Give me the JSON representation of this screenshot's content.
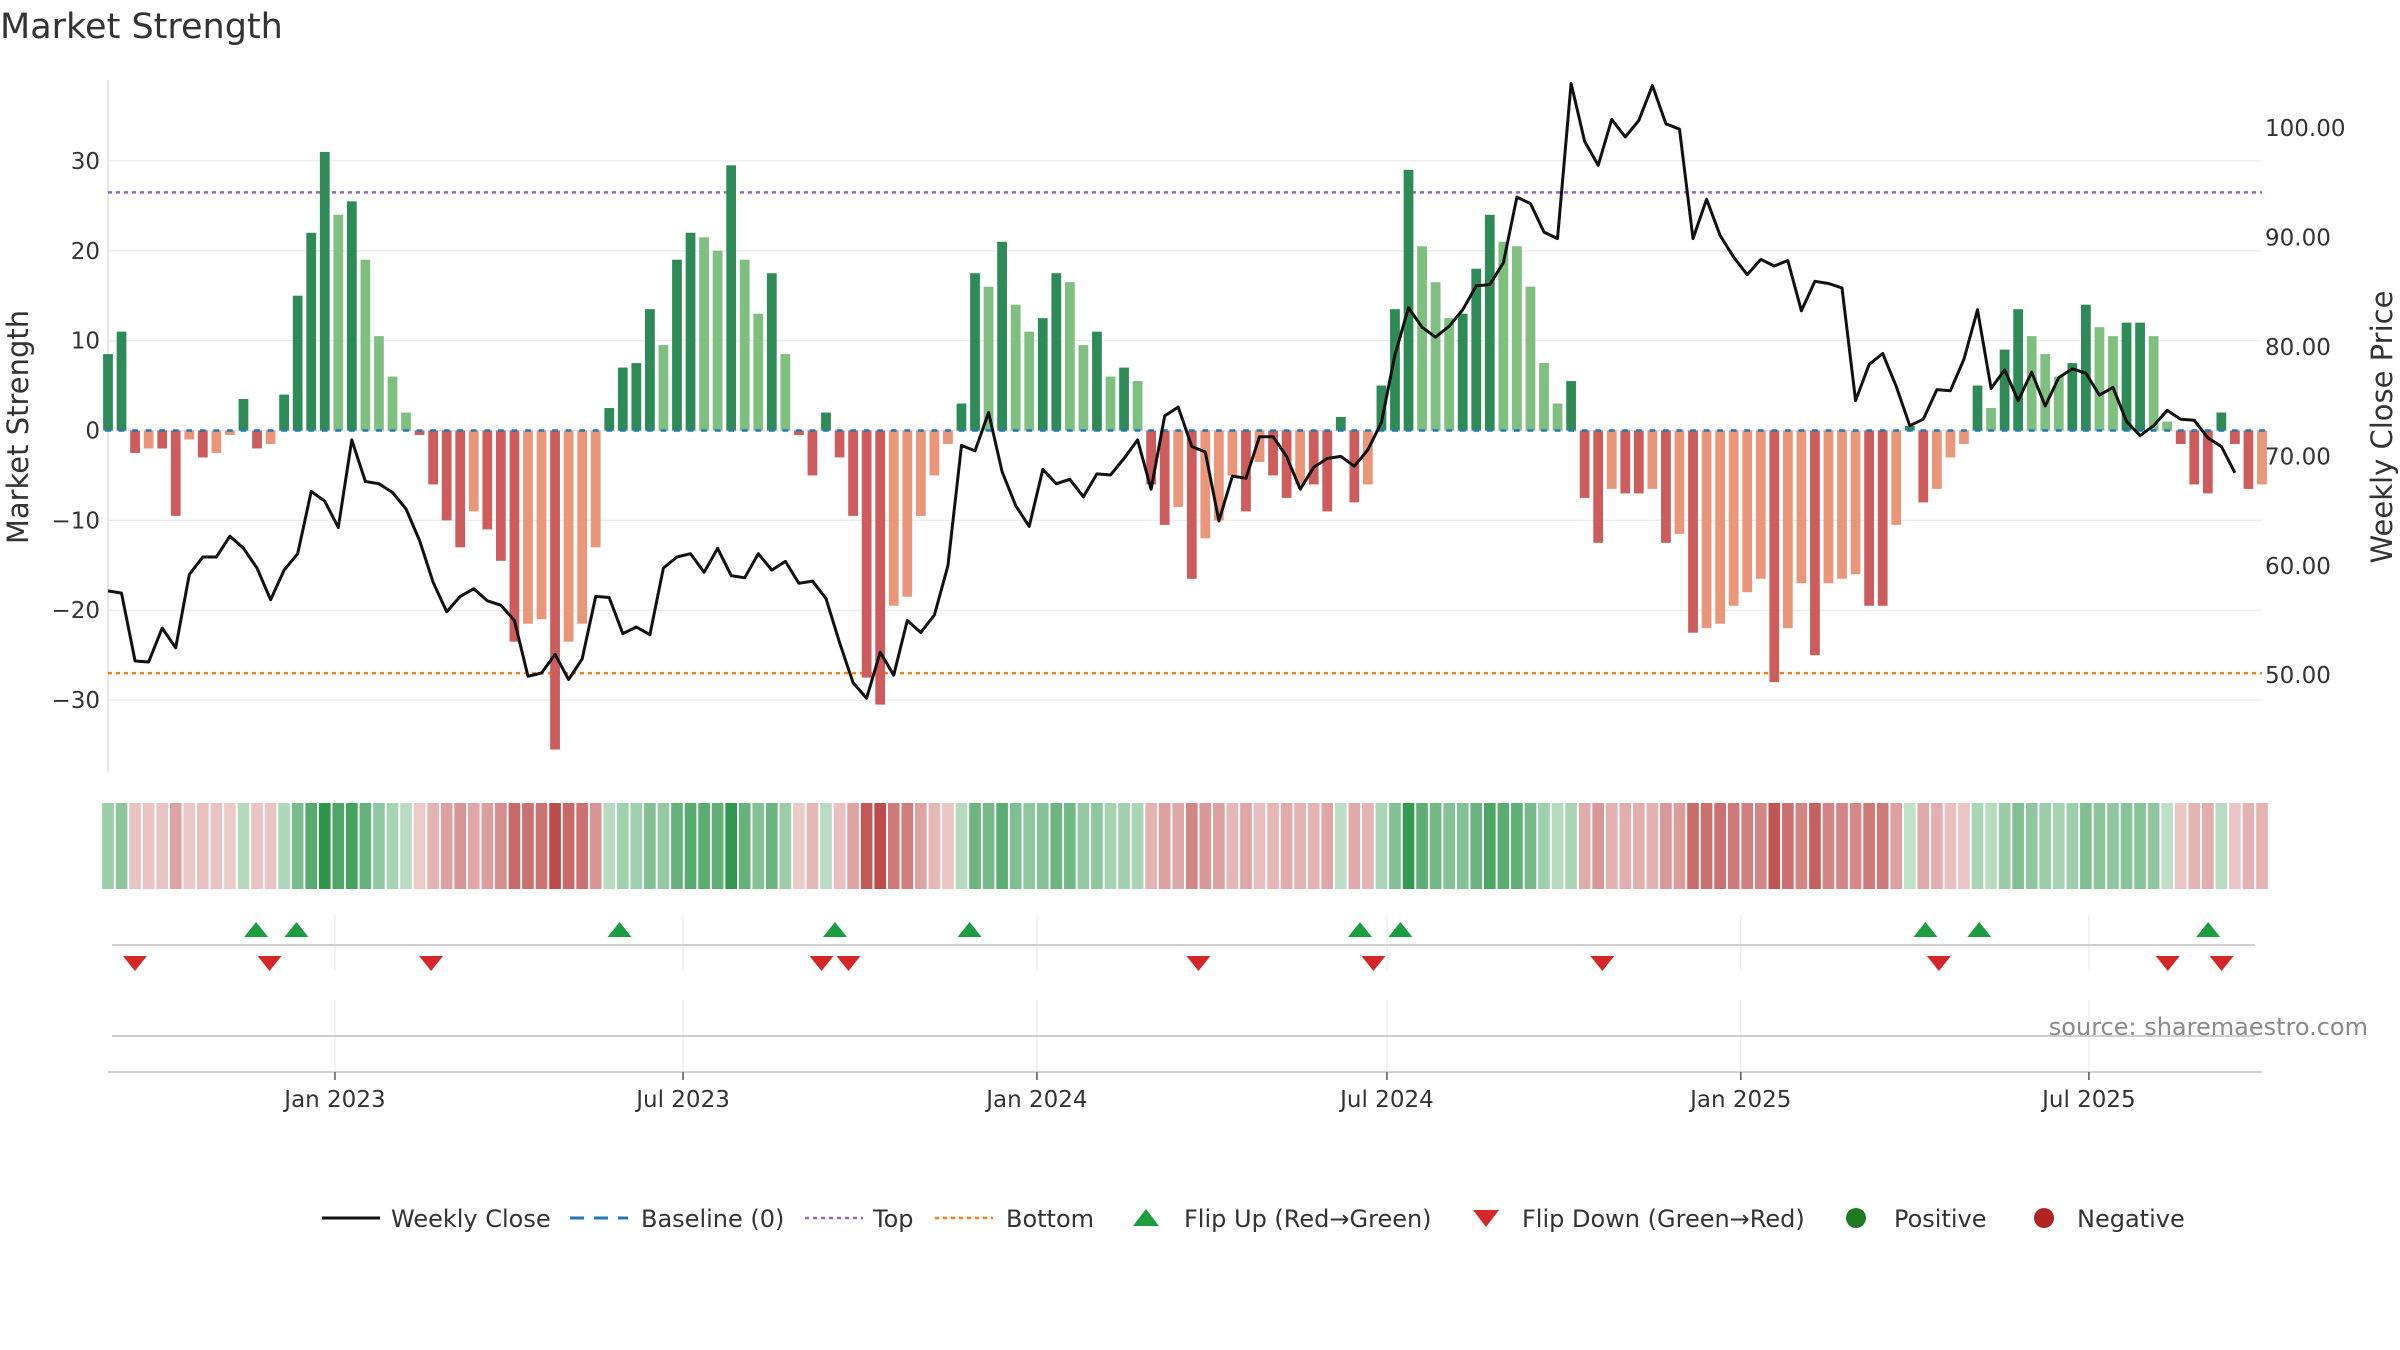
{
  "chart_data": {
    "type": "bar",
    "title": "Market Strength",
    "ylabel": "Market Strength",
    "y2label": "Weekly Close Price",
    "ylim": [
      -38,
      39
    ],
    "y2lim": [
      41.15,
      104.4
    ],
    "yticks": [
      30,
      20,
      10,
      0,
      -10,
      -20,
      -30
    ],
    "ytick_labels": [
      "30",
      "20",
      "10",
      "0",
      "−10",
      "−20",
      "−30"
    ],
    "y2ticks": [
      100,
      90,
      80,
      70,
      60,
      50
    ],
    "y2tick_labels": [
      "100.00",
      "90.00",
      "80.00",
      "70.00",
      "60.00",
      "50.00"
    ],
    "x_start": "2022-09-05",
    "x_end": "2025-09-29",
    "xtick_dates": [
      "2023-01-01",
      "2023-07-01",
      "2024-01-01",
      "2024-07-01",
      "2025-01-01",
      "2025-07-01"
    ],
    "xtick_labels": [
      "Jan 2023",
      "Jul 2023",
      "Jan 2024",
      "Jul 2024",
      "Jan 2025",
      "Jul 2025"
    ],
    "top_level": 26.5,
    "bottom_level": -27,
    "baseline": 0,
    "colors": {
      "green_dark": "#2e8b57",
      "green_light": "#7fbf7f",
      "red_dark": "#cd5c5c",
      "red_light": "#e9967a",
      "close": "#111111",
      "baseline": "#1f77b4",
      "top": "#9467bd",
      "bottom": "#ff7f0e",
      "flip_up": "#1a9e3f",
      "flip_down": "#d62728",
      "positive": "#1f7a1f",
      "negative": "#b22222"
    },
    "strength": [
      8.5,
      11,
      -2.5,
      -2,
      -2,
      -9.5,
      -1,
      -3,
      -2.5,
      -0.5,
      3.5,
      -2,
      -1.5,
      4,
      15,
      22,
      31,
      24,
      25.5,
      19,
      10.5,
      6,
      2,
      -0.5,
      -6,
      -10,
      -13,
      -9,
      -11,
      -14.5,
      -23.5,
      -21.5,
      -21,
      -35.5,
      -23.5,
      -21.5,
      -13,
      2.5,
      7,
      7.5,
      13.5,
      9.5,
      19,
      22,
      21.5,
      20,
      29.5,
      19,
      13,
      17.5,
      8.5,
      -0.5,
      -5,
      2,
      -3,
      -9.5,
      -27.5,
      -30.5,
      -19.5,
      -18.5,
      -9.5,
      -5,
      -1.5,
      3,
      17.5,
      16,
      21,
      14,
      11,
      12.5,
      17.5,
      16.5,
      9.5,
      11,
      6,
      7,
      5.5,
      -6,
      -10.5,
      -8.5,
      -16.5,
      -12,
      -10,
      -5,
      -9,
      -3.5,
      -5,
      -7.5,
      -6,
      -6,
      -9,
      1.5,
      -8,
      -6,
      5,
      13.5,
      29,
      20.5,
      16.5,
      12.5,
      13,
      18,
      24,
      21,
      20.5,
      16,
      7.5,
      3,
      5.5,
      -7.5,
      -12.5,
      -6.5,
      -7,
      -7,
      -6.5,
      -12.5,
      -11.5,
      -22.5,
      -22,
      -21.5,
      -19.5,
      -18,
      -16.5,
      -28,
      -22,
      -17,
      -25,
      -17,
      -16.5,
      -16,
      -19.5,
      -19.5,
      -10.5,
      0.5,
      -8,
      -6.5,
      -3,
      -1.5,
      5,
      2.5,
      9,
      13.5,
      10.5,
      8.5,
      6,
      7.5,
      14,
      11.5,
      10.5,
      12,
      12,
      10.5,
      1,
      -1.5,
      -6,
      -7,
      2,
      -1.5,
      -6.5,
      -6
    ],
    "close": [
      57.7,
      57.5,
      51.3,
      51.2,
      54.3,
      52.5,
      59.2,
      60.8,
      60.8,
      62.7,
      61.6,
      59.8,
      56.9,
      59.6,
      61.1,
      66.8,
      65.9,
      63.5,
      71.5,
      67.7,
      67.5,
      66.7,
      65.2,
      62.3,
      58.5,
      55.8,
      57.2,
      57.9,
      56.8,
      56.4,
      55.0,
      49.9,
      50.2,
      51.9,
      49.6,
      51.5,
      57.2,
      57.1,
      53.8,
      54.4,
      53.7,
      59.8,
      60.8,
      61.1,
      59.4,
      61.6,
      59.1,
      58.9,
      61.1,
      59.6,
      60.4,
      58.4,
      58.6,
      57.0,
      53.0,
      49.3,
      47.9,
      52.1,
      50.0,
      55.0,
      53.9,
      55.5,
      60.0,
      71.0,
      70.5,
      74.0,
      68.6,
      65.5,
      63.6,
      68.8,
      67.5,
      67.9,
      66.3,
      68.4,
      68.3,
      69.8,
      71.5,
      67.0,
      73.7,
      74.5,
      70.9,
      70.4,
      64.1,
      68.2,
      68.0,
      71.8,
      71.8,
      70.0,
      67.0,
      69.0,
      69.8,
      70.0,
      69.1,
      70.6,
      73.1,
      79.3,
      83.6,
      81.8,
      80.9,
      81.9,
      83.4,
      85.6,
      85.7,
      87.7,
      93.7,
      93.1,
      90.5,
      89.9,
      104.1,
      98.8,
      96.6,
      100.8,
      99.2,
      100.7,
      103.9,
      100.4,
      99.9,
      89.9,
      93.5,
      90.2,
      88.2,
      86.6,
      88.0,
      87.4,
      87.9,
      83.3,
      86.0,
      85.8,
      85.4,
      75.1,
      78.4,
      79.4,
      76.4,
      72.8,
      73.4,
      76.1,
      76.0,
      78.9,
      83.4,
      76.2,
      77.9,
      75.1,
      77.7,
      74.6,
      77.2,
      78.0,
      77.6,
      75.6,
      76.3,
      73.2,
      71.9,
      72.8,
      74.2,
      73.4,
      73.3,
      71.7,
      70.9,
      68.5
    ]
  },
  "flip_up_dates": [
    "2022-11-21",
    "2022-12-12",
    "2023-05-29",
    "2023-09-18",
    "2023-11-27",
    "2024-06-17",
    "2024-07-08",
    "2025-04-07",
    "2025-05-05",
    "2025-09-01"
  ],
  "flip_down_dates": [
    "2022-09-19",
    "2022-11-28",
    "2023-02-20",
    "2023-09-11",
    "2023-09-25",
    "2024-03-25",
    "2024-06-24",
    "2024-10-21",
    "2025-04-14",
    "2025-08-11",
    "2025-09-08"
  ],
  "legend": [
    {
      "label": "Weekly Close",
      "marker": "line"
    },
    {
      "label": "Baseline (0)",
      "marker": "dash"
    },
    {
      "label": "Top",
      "marker": "dot-purple"
    },
    {
      "label": "Bottom",
      "marker": "dot-orange"
    },
    {
      "label": "Flip Up (Red→Green)",
      "marker": "triangle-up"
    },
    {
      "label": "Flip Down (Green→Red)",
      "marker": "triangle-down"
    },
    {
      "label": "Positive",
      "marker": "circle-green"
    },
    {
      "label": "Negative",
      "marker": "circle-red"
    }
  ],
  "source": "source: sharemaestro.com"
}
